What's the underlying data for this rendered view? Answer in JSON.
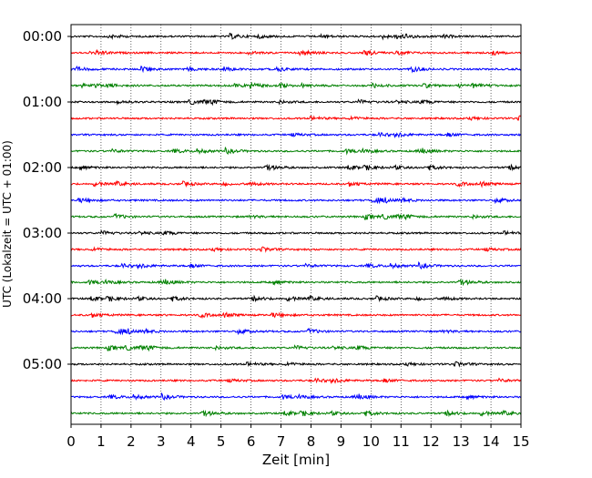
{
  "chart_data": {
    "type": "line",
    "title": "",
    "xlabel": "Zeit  [min]",
    "ylabel": "UTC (Lokalzeit = UTC + 01:00)",
    "xlim": [
      0,
      15
    ],
    "x_ticks": [
      "0",
      "1",
      "2",
      "3",
      "4",
      "5",
      "6",
      "7",
      "8",
      "9",
      "10",
      "11",
      "12",
      "13",
      "14",
      "15"
    ],
    "y_ticks": [
      "00:00",
      "01:00",
      "02:00",
      "03:00",
      "04:00",
      "05:00"
    ],
    "grid": "vertical dotted lines at each minute",
    "legend": "none",
    "trace_interval_minutes": 15,
    "colors": [
      "#000000",
      "#ff0000",
      "#0000ff",
      "#008000"
    ],
    "traces": [
      {
        "start": "00:00",
        "color": "#000000"
      },
      {
        "start": "00:15",
        "color": "#ff0000"
      },
      {
        "start": "00:30",
        "color": "#0000ff"
      },
      {
        "start": "00:45",
        "color": "#008000"
      },
      {
        "start": "01:00",
        "color": "#000000"
      },
      {
        "start": "01:15",
        "color": "#ff0000"
      },
      {
        "start": "01:30",
        "color": "#0000ff"
      },
      {
        "start": "01:45",
        "color": "#008000"
      },
      {
        "start": "02:00",
        "color": "#000000"
      },
      {
        "start": "02:15",
        "color": "#ff0000"
      },
      {
        "start": "02:30",
        "color": "#0000ff"
      },
      {
        "start": "02:45",
        "color": "#008000"
      },
      {
        "start": "03:00",
        "color": "#000000"
      },
      {
        "start": "03:15",
        "color": "#ff0000"
      },
      {
        "start": "03:30",
        "color": "#0000ff"
      },
      {
        "start": "03:45",
        "color": "#008000"
      },
      {
        "start": "04:00",
        "color": "#000000"
      },
      {
        "start": "04:15",
        "color": "#ff0000"
      },
      {
        "start": "04:30",
        "color": "#0000ff"
      },
      {
        "start": "04:45",
        "color": "#008000"
      },
      {
        "start": "05:00",
        "color": "#000000"
      },
      {
        "start": "05:15",
        "color": "#ff0000"
      },
      {
        "start": "05:30",
        "color": "#0000ff"
      },
      {
        "start": "05:45",
        "color": "#008000"
      }
    ]
  }
}
